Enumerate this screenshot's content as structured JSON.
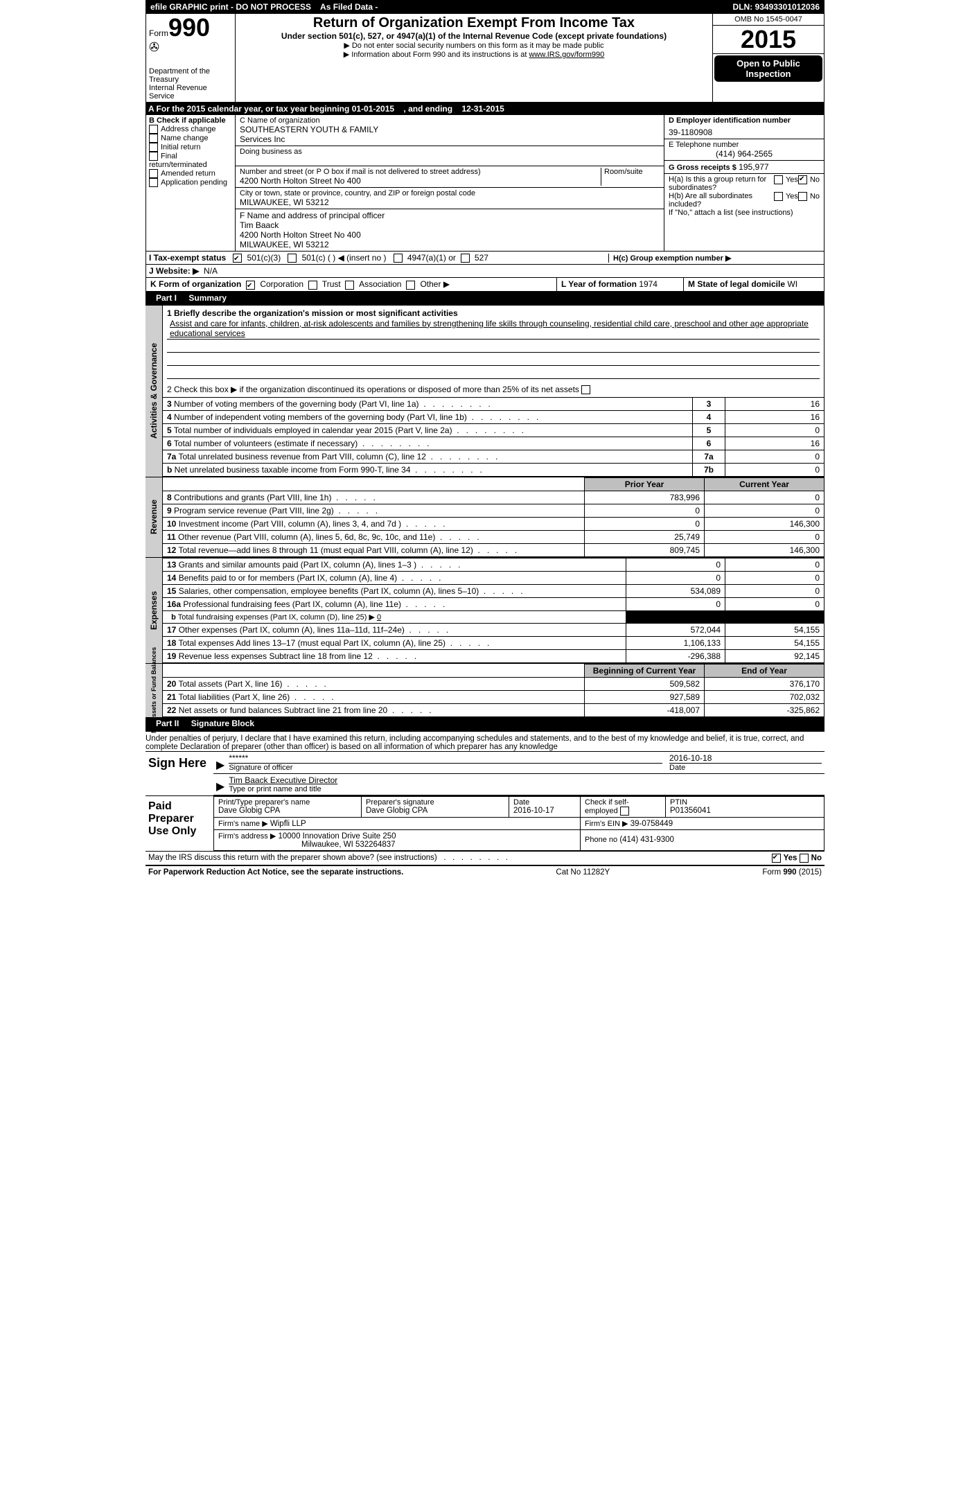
{
  "topbar": {
    "efile": "efile GRAPHIC print - DO NOT PROCESS",
    "asfiled": "As Filed Data -",
    "dln_label": "DLN:",
    "dln": "93493301012036"
  },
  "header": {
    "form_word": "Form",
    "form_no": "990",
    "dept1": "Department of the Treasury",
    "dept2": "Internal Revenue Service",
    "title": "Return of Organization Exempt From Income Tax",
    "subtitle": "Under section 501(c), 527, or 4947(a)(1) of the Internal Revenue Code (except private foundations)",
    "note1": "▶ Do not enter social security numbers on this form as it may be made public",
    "note2_a": "▶ Information about Form 990 and its instructions is at ",
    "note2_link": "www.IRS.gov/form990",
    "omb_label": "OMB No",
    "omb": "1545-0047",
    "year": "2015",
    "open_pub": "Open to Public Inspection"
  },
  "lineA": {
    "pre": "A   For the 2015 calendar year, or tax year beginning",
    "begin": "01-01-2015",
    "mid": ", and ending",
    "end": "12-31-2015"
  },
  "colB": {
    "label": "B  Check if applicable",
    "addrchg": "Address change",
    "namechg": "Name change",
    "initret": "Initial return",
    "finalret": "Final return/terminated",
    "amend": "Amended return",
    "apppend": "Application pending"
  },
  "colC": {
    "name_label": "C Name of organization",
    "name1": "SOUTHEASTERN YOUTH & FAMILY",
    "name2": "Services Inc",
    "dba_label": "Doing business as",
    "street_label": "Number and street (or P O  box if mail is not delivered to street address)",
    "room_label": "Room/suite",
    "street": "4200 North Holton Street No 400",
    "city_label": "City or town, state or province, country, and ZIP or foreign postal code",
    "city": "MILWAUKEE, WI  53212",
    "F_label": "F   Name and address of principal officer",
    "F_name": "Tim Baack",
    "F_street": "4200 North Holton Street No 400",
    "F_city": "MILWAUKEE, WI  53212"
  },
  "colR": {
    "D_label": "D Employer identification number",
    "D_val": "39-1180908",
    "E_label": "E Telephone number",
    "E_val": "(414) 964-2565",
    "G_label": "G Gross receipts $",
    "G_val": "195,977",
    "Ha_label": "H(a)  Is this a group return for subordinates?",
    "yes": "Yes",
    "no": "No",
    "Hb_label": "H(b)  Are all subordinates included?",
    "Hb_note": "If \"No,\" attach a list  (see instructions)",
    "Hc_label": "H(c)   Group exemption number ▶"
  },
  "lineI": {
    "label": "I   Tax-exempt status",
    "c3": "501(c)(3)",
    "c": "501(c) (  ) ◀ (insert no )",
    "a1": "4947(a)(1) or",
    "s527": "527"
  },
  "lineJ": {
    "label": "J   Website: ▶",
    "val": "N/A"
  },
  "lineK": {
    "label": "K Form of organization",
    "corp": "Corporation",
    "trust": "Trust",
    "assoc": "Association",
    "other": "Other ▶",
    "L_label": "L Year of formation",
    "L_val": "1974",
    "M_label": "M State of legal domicile",
    "M_val": "WI"
  },
  "partI": {
    "hdr": "Part I",
    "title": "Summary",
    "q1_label": "1 Briefly describe the organization's mission or most significant activities",
    "q1_text": "Assist and care for infants, children, at-risk adolescents and families by strengthening life skills through counseling, residential child care, preschool and other age appropriate educational services",
    "q2": "2  Check this box ▶     if the organization discontinued its operations or disposed of more than 25% of its net assets",
    "lines": [
      {
        "n": "3",
        "t": "Number of voting members of the governing body (Part VI, line 1a)",
        "k": "3",
        "v": "16"
      },
      {
        "n": "4",
        "t": "Number of independent voting members of the governing body (Part VI, line 1b)",
        "k": "4",
        "v": "16"
      },
      {
        "n": "5",
        "t": "Total number of individuals employed in calendar year 2015 (Part V, line 2a)",
        "k": "5",
        "v": "0"
      },
      {
        "n": "6",
        "t": "Total number of volunteers (estimate if necessary)",
        "k": "6",
        "v": "16"
      },
      {
        "n": "7a",
        "t": "Total unrelated business revenue from Part VIII, column (C), line 12",
        "k": "7a",
        "v": "0"
      },
      {
        "n": "b",
        "t": "Net unrelated business taxable income from Form 990-T, line 34",
        "k": "7b",
        "v": "0"
      }
    ],
    "py_hdr": "Prior Year",
    "cy_hdr": "Current Year",
    "rev": [
      {
        "n": "8",
        "t": "Contributions and grants (Part VIII, line 1h)",
        "p": "783,996",
        "c": "0"
      },
      {
        "n": "9",
        "t": "Program service revenue (Part VIII, line 2g)",
        "p": "0",
        "c": "0"
      },
      {
        "n": "10",
        "t": "Investment income (Part VIII, column (A), lines 3, 4, and 7d )",
        "p": "0",
        "c": "146,300"
      },
      {
        "n": "11",
        "t": "Other revenue (Part VIII, column (A), lines 5, 6d, 8c, 9c, 10c, and 11e)",
        "p": "25,749",
        "c": "0"
      },
      {
        "n": "12",
        "t": "Total revenue—add lines 8 through 11 (must equal Part VIII, column (A), line 12)",
        "p": "809,745",
        "c": "146,300"
      }
    ],
    "exp": [
      {
        "n": "13",
        "t": "Grants and similar amounts paid (Part IX, column (A), lines 1–3 )",
        "p": "0",
        "c": "0"
      },
      {
        "n": "14",
        "t": "Benefits paid to or for members (Part IX, column (A), line 4)",
        "p": "0",
        "c": "0"
      },
      {
        "n": "15",
        "t": "Salaries, other compensation, employee benefits (Part IX, column (A), lines 5–10)",
        "p": "534,089",
        "c": "0"
      },
      {
        "n": "16a",
        "t": "Professional fundraising fees (Part IX, column (A), line 11e)",
        "p": "0",
        "c": "0"
      }
    ],
    "exp_b": {
      "n": "b",
      "t": "Total fundraising expenses (Part IX, column (D), line 25) ▶",
      "v": "0"
    },
    "exp2": [
      {
        "n": "17",
        "t": "Other expenses (Part IX, column (A), lines 11a–11d, 11f–24e)",
        "p": "572,044",
        "c": "54,155"
      },
      {
        "n": "18",
        "t": "Total expenses  Add lines 13–17 (must equal Part IX, column (A), line 25)",
        "p": "1,106,133",
        "c": "54,155"
      },
      {
        "n": "19",
        "t": "Revenue less expenses  Subtract line 18 from line 12",
        "p": "-296,388",
        "c": "92,145"
      }
    ],
    "bcy_hdr": "Beginning of Current Year",
    "eoy_hdr": "End of Year",
    "net": [
      {
        "n": "20",
        "t": "Total assets (Part X, line 16)",
        "p": "509,582",
        "c": "376,170"
      },
      {
        "n": "21",
        "t": "Total liabilities (Part X, line 26)",
        "p": "927,589",
        "c": "702,032"
      },
      {
        "n": "22",
        "t": "Net assets or fund balances  Subtract line 21 from line 20",
        "p": "-418,007",
        "c": "-325,862"
      }
    ],
    "side_gov": "Activities & Governance",
    "side_rev": "Revenue",
    "side_exp": "Expenses",
    "side_net": "Net Assets or Fund Balances"
  },
  "partII": {
    "hdr": "Part II",
    "title": "Signature Block",
    "decl": "Under penalties of perjury, I declare that I have examined this return, including accompanying schedules and statements, and to the best of my knowledge and belief, it is true, correct, and complete  Declaration of preparer (other than officer) is based on all information of which preparer has any knowledge",
    "sign_here": "Sign Here",
    "stars": "******",
    "sig_of": "Signature of officer",
    "date_label": "Date",
    "date1": "2016-10-18",
    "typed_name": "Tim Baack Executive Director",
    "typed_label": "Type or print name and title",
    "paid": "Paid Preparer Use Only",
    "p_name_label": "Print/Type preparer's name",
    "p_name": "Dave Globig CPA",
    "p_sig_label": "Preparer's signature",
    "p_sig": "Dave Globig CPA",
    "p_date_label": "Date",
    "p_date": "2016-10-17",
    "p_self": "Check       if self-employed",
    "p_ptin_label": "PTIN",
    "p_ptin": "P01356041",
    "firm_name_label": "Firm's name     ▶",
    "firm_name": "Wipfli LLP",
    "firm_ein_label": "Firm's EIN ▶",
    "firm_ein": "39-0758449",
    "firm_addr_label": "Firm's address ▶",
    "firm_addr1": "10000 Innovation Drive Suite 250",
    "firm_addr2": "Milwaukee, WI  532264837",
    "firm_phone_label": "Phone no",
    "firm_phone": "(414) 431-9300",
    "may_irs": "May the IRS discuss this return with the preparer shown above? (see instructions)"
  },
  "footer": {
    "pra": "For Paperwork Reduction Act Notice, see the separate instructions.",
    "cat": "Cat No  11282Y",
    "form": "Form 990 (2015)"
  }
}
